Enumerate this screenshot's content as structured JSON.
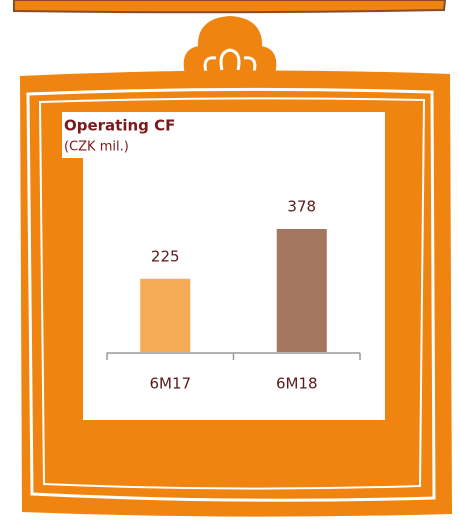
{
  "chart_data": {
    "type": "bar",
    "title": "Operating CF",
    "subtitle": "(CZK mil.)",
    "categories": [
      "6M17",
      "6M18"
    ],
    "values": [
      225,
      378
    ],
    "colors": [
      "#f5aa55",
      "#a57660"
    ]
  }
}
